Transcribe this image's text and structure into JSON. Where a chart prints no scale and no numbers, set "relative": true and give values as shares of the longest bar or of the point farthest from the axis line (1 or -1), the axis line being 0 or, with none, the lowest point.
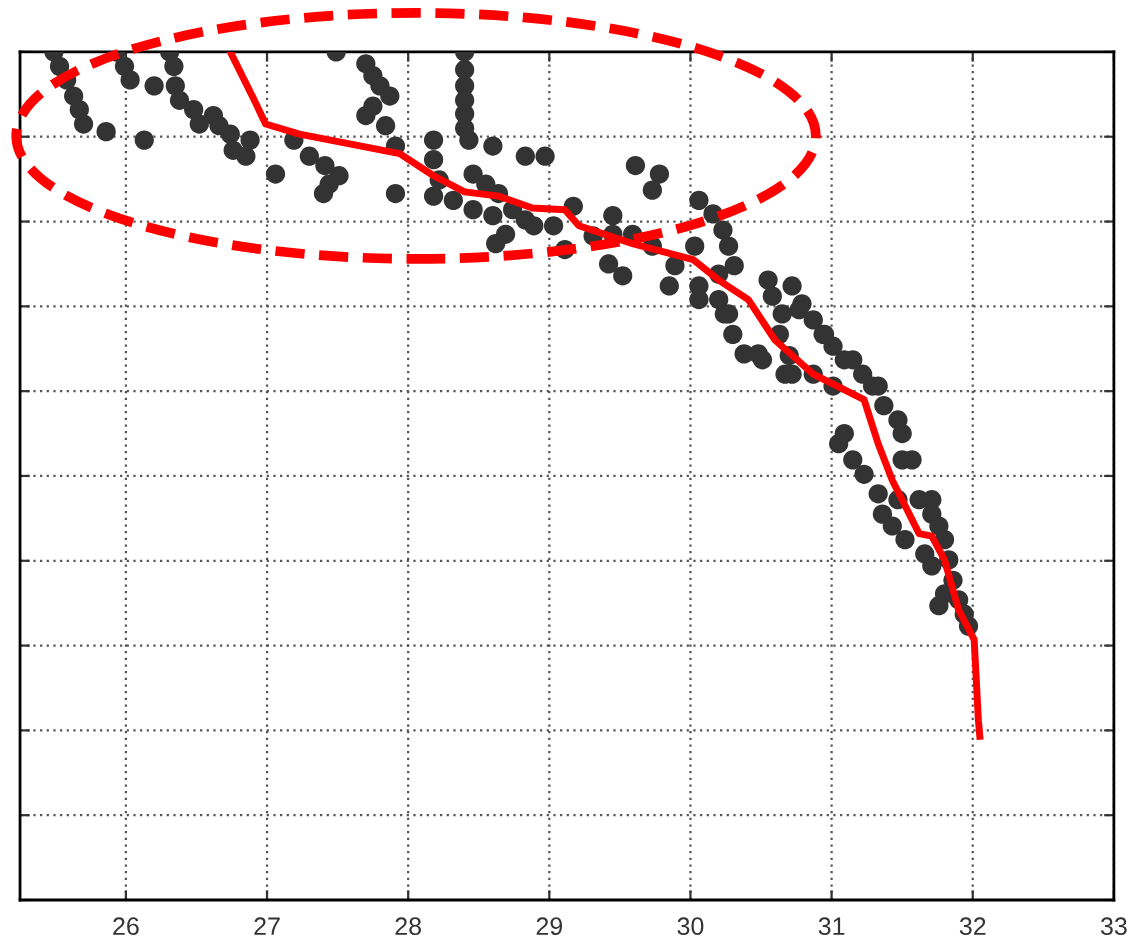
{
  "chart_data": {
    "type": "scatter",
    "relative": true,
    "xlim": [
      25.25,
      33
    ],
    "xticks": [
      26,
      27,
      28,
      29,
      30,
      31,
      32,
      33
    ],
    "grid": true,
    "marker": "circle",
    "series": [
      {
        "color": "#333333",
        "x": [
          25.49,
          25.53,
          25.58,
          25.63,
          25.67,
          25.7,
          25.86,
          25.93,
          25.99,
          26.03,
          26.13,
          26.2,
          26.31,
          26.34,
          26.35,
          26.38,
          26.48,
          26.52,
          26.62,
          26.66,
          26.74,
          26.76,
          26.85,
          26.88,
          27.06,
          27.19,
          27.3,
          27.41,
          27.51,
          27.44,
          27.4,
          27.49,
          27.7,
          27.75,
          27.8,
          27.87,
          27.75,
          27.7,
          27.84,
          27.91,
          27.91,
          28.4,
          28.4,
          28.4,
          28.4,
          28.4,
          28.4,
          28.43,
          28.18,
          28.6,
          28.83,
          28.97,
          28.18,
          28.22,
          28.18,
          28.46,
          28.55,
          28.64,
          28.32,
          28.46,
          28.6,
          28.74,
          28.83,
          28.89,
          28.69,
          28.62,
          29.03,
          29.17,
          29.11,
          29.31,
          29.61,
          29.78,
          29.73,
          29.45,
          29.45,
          29.42,
          29.52,
          29.59,
          29.73,
          29.89,
          29.85,
          30.03,
          30.06,
          30.06,
          30.16,
          30.23,
          30.27,
          30.31,
          30.2,
          30.2,
          30.27,
          30.3,
          30.38,
          30.51,
          30.55,
          30.58,
          30.65,
          30.72,
          30.79,
          30.87,
          30.94,
          31.01,
          31.09,
          31.22,
          31.29,
          30.63,
          30.7,
          30.87,
          31.01,
          30.72,
          30.06,
          30.24,
          30.48,
          30.67,
          30.77,
          30.95,
          31.15,
          31.33,
          31.37,
          31.47,
          31.5,
          31.5,
          31.09,
          31.05,
          31.15,
          31.23,
          31.33,
          31.36,
          31.43,
          31.52,
          31.62,
          31.71,
          31.71,
          31.76,
          31.8,
          31.66,
          31.71,
          31.83,
          31.86,
          31.8,
          31.76,
          31.9,
          31.94,
          31.97,
          31.57,
          31.47
        ],
        "values": [
          1,
          0.983,
          0.967,
          0.948,
          0.932,
          0.915,
          0.906,
          1,
          0.983,
          0.967,
          0.896,
          0.96,
          1,
          0.983,
          0.96,
          0.943,
          0.932,
          0.915,
          0.925,
          0.913,
          0.903,
          0.884,
          0.877,
          0.896,
          0.856,
          0.896,
          0.877,
          0.866,
          0.854,
          0.844,
          0.833,
          1,
          0.986,
          0.972,
          0.96,
          0.948,
          0.936,
          0.925,
          0.913,
          0.889,
          0.833,
          1,
          0.979,
          0.96,
          0.943,
          0.927,
          0.91,
          0.896,
          0.896,
          0.889,
          0.877,
          0.877,
          0.873,
          0.849,
          0.83,
          0.856,
          0.844,
          0.833,
          0.825,
          0.814,
          0.807,
          0.814,
          0.802,
          0.795,
          0.785,
          0.774,
          0.795,
          0.818,
          0.767,
          0.783,
          0.866,
          0.856,
          0.837,
          0.807,
          0.785,
          0.75,
          0.736,
          0.785,
          0.771,
          0.748,
          0.724,
          0.771,
          0.724,
          0.825,
          0.809,
          0.79,
          0.771,
          0.748,
          0.738,
          0.708,
          0.691,
          0.667,
          0.644,
          0.637,
          0.731,
          0.712,
          0.691,
          0.724,
          0.703,
          0.684,
          0.667,
          0.653,
          0.637,
          0.62,
          0.606,
          0.667,
          0.642,
          0.62,
          0.606,
          0.62,
          0.708,
          0.691,
          0.644,
          0.62,
          0.696,
          0.667,
          0.637,
          0.606,
          0.583,
          0.566,
          0.55,
          0.519,
          0.55,
          0.538,
          0.519,
          0.502,
          0.479,
          0.455,
          0.441,
          0.425,
          0.472,
          0.472,
          0.455,
          0.441,
          0.425,
          0.408,
          0.394,
          0.401,
          0.377,
          0.361,
          0.347,
          0.354,
          0.337,
          0.323,
          0.519,
          0.472
        ]
      },
      {
        "type": "line",
        "color": "#ff0000",
        "marker": "none",
        "x": [
          26.74,
          26.91,
          26.99,
          27.23,
          27.94,
          28.18,
          28.4,
          28.64,
          28.88,
          29.11,
          29.21,
          29.59,
          30.02,
          30.2,
          30.41,
          30.6,
          30.87,
          31.23,
          31.33,
          31.43,
          31.62,
          31.71,
          31.8,
          31.9,
          32.01,
          32.04,
          32.05
        ],
        "values": [
          1,
          0.943,
          0.915,
          0.903,
          0.88,
          0.854,
          0.835,
          0.83,
          0.816,
          0.814,
          0.795,
          0.774,
          0.755,
          0.731,
          0.708,
          0.66,
          0.62,
          0.59,
          0.538,
          0.495,
          0.432,
          0.429,
          0.401,
          0.342,
          0.307,
          0.212,
          0.193
        ]
      }
    ]
  }
}
